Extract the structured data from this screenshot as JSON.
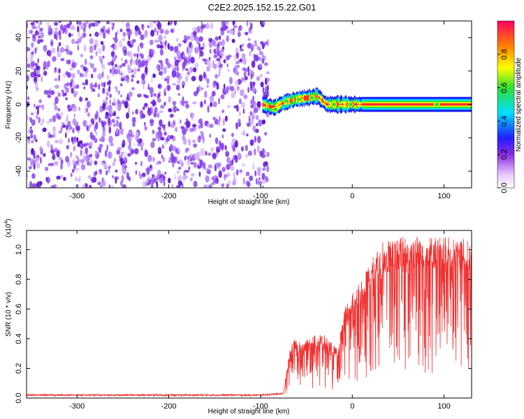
{
  "figure": {
    "title": "C2E2.2025.152.15.22.G01"
  },
  "chart_data": [
    {
      "type": "heatmap",
      "xlabel": "Height of straight line (km)",
      "ylabel": "Frequency (Hz)",
      "xlim": [
        -355,
        130
      ],
      "ylim": [
        -50,
        50
      ],
      "xticks": [
        -300,
        -200,
        -100,
        0,
        100
      ],
      "yticks": [
        -40,
        -20,
        0,
        20,
        40
      ],
      "colorbar": {
        "label": "Normalized spectral amplitude",
        "range": [
          0,
          1
        ],
        "ticks": [
          "0.0",
          "0.2",
          "0.4",
          "0.6",
          "0.8"
        ],
        "tick_values": [
          0,
          0.2,
          0.4,
          0.6,
          0.8
        ]
      },
      "noise_region": {
        "x_from": -355,
        "x_to": -95,
        "level": 0.2
      },
      "signal_track": [
        {
          "x": -98,
          "y": 0,
          "amplitude": 0.4
        },
        {
          "x": -85,
          "y": -2,
          "amplitude": 0.5
        },
        {
          "x": -75,
          "y": 1,
          "amplitude": 0.55
        },
        {
          "x": -62,
          "y": 3,
          "amplitude": 0.6
        },
        {
          "x": -48,
          "y": 4,
          "amplitude": 0.7
        },
        {
          "x": -38,
          "y": 5,
          "amplitude": 0.85
        },
        {
          "x": -28,
          "y": 0,
          "amplitude": 0.9
        },
        {
          "x": -10,
          "y": 0,
          "amplitude": 0.95
        },
        {
          "x": 5,
          "y": 0,
          "amplitude": 1.0
        },
        {
          "x": 130,
          "y": 0,
          "amplitude": 1.0
        }
      ]
    },
    {
      "type": "line",
      "xlabel": "Height of straight line (km)",
      "ylabel": "SNR (10 * v/v)",
      "y_multiplier": "(x10",
      "y_multiplier_exp": "4",
      "xlim": [
        -355,
        130
      ],
      "ylim": [
        0,
        1.13
      ],
      "xticks": [
        -300,
        -200,
        -100,
        0,
        100
      ],
      "yticks": [
        0.0,
        0.2,
        0.4,
        0.6,
        0.8,
        1.0
      ],
      "ytick_labels": [
        "0.0",
        "0.2",
        "0.4",
        "0.6",
        "0.8",
        "1.0"
      ],
      "series": [
        {
          "color": "#f03030",
          "envelope": [
            {
              "x": -355,
              "y": 0.02
            },
            {
              "x": -100,
              "y": 0.02
            },
            {
              "x": -75,
              "y": 0.03
            },
            {
              "x": -70,
              "y": 0.25
            },
            {
              "x": -65,
              "y": 0.38
            },
            {
              "x": -55,
              "y": 0.35
            },
            {
              "x": -40,
              "y": 0.4
            },
            {
              "x": -30,
              "y": 0.4
            },
            {
              "x": -15,
              "y": 0.3
            },
            {
              "x": -10,
              "y": 0.55
            },
            {
              "x": 0,
              "y": 0.66
            },
            {
              "x": 15,
              "y": 0.8
            },
            {
              "x": 30,
              "y": 0.98
            },
            {
              "x": 60,
              "y": 1.03
            },
            {
              "x": 90,
              "y": 1.02
            },
            {
              "x": 130,
              "y": 1.0
            }
          ]
        }
      ]
    }
  ]
}
